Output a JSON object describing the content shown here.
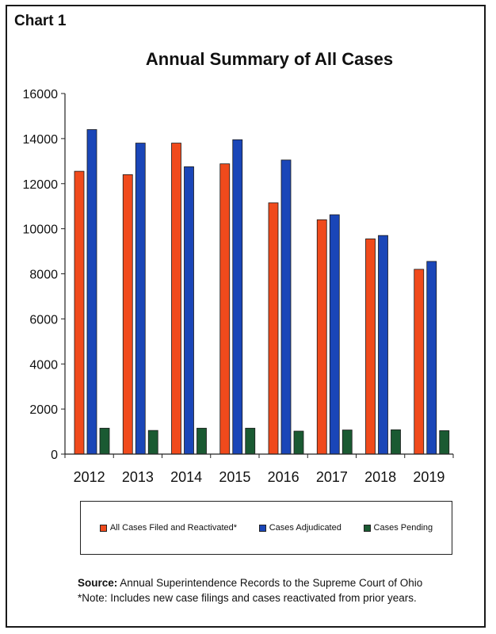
{
  "chart_label": "Chart 1",
  "chart_data": {
    "type": "bar",
    "title": "Annual Summary of All Cases",
    "categories": [
      "2012",
      "2013",
      "2014",
      "2015",
      "2016",
      "2017",
      "2018",
      "2019"
    ],
    "series": [
      {
        "name": "All Cases Filed and Reactivated*",
        "color": "#f04a1c",
        "values": [
          12550,
          12400,
          13800,
          12880,
          11150,
          10400,
          9550,
          8200
        ]
      },
      {
        "name": "Cases Adjudicated",
        "color": "#1a46b8",
        "values": [
          14400,
          13800,
          12750,
          13950,
          13050,
          10620,
          9700,
          8550
        ]
      },
      {
        "name": "Cases Pending",
        "color": "#1a5a32",
        "values": [
          1150,
          1050,
          1150,
          1150,
          1020,
          1070,
          1080,
          1040
        ]
      }
    ],
    "yticks": [
      0,
      2000,
      4000,
      6000,
      8000,
      10000,
      12000,
      14000,
      16000
    ],
    "ylim": [
      0,
      16000
    ],
    "grid": false,
    "legend_position": "bottom"
  },
  "footer": {
    "source_label": "Source:",
    "source_text": "Annual Superintendence Records to the Supreme Court of Ohio",
    "note": "*Note: Includes new case filings and cases reactivated from prior years."
  }
}
